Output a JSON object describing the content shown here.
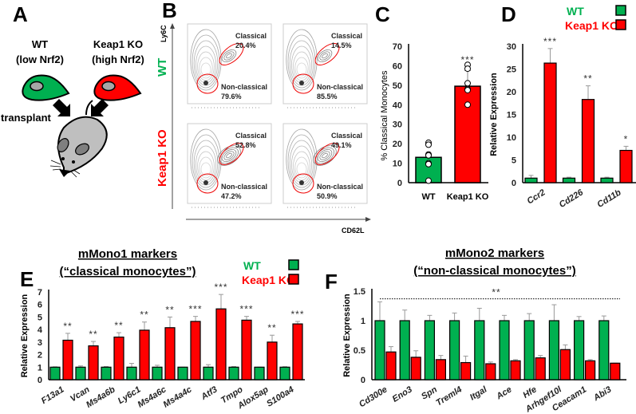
{
  "colors": {
    "wt": "#00b050",
    "ko": "#ff0000",
    "gray": "#bfbfbf"
  },
  "panel_a": {
    "letter": "A",
    "wt_label": "WT",
    "wt_sub": "(low Nrf2)",
    "ko_label": "Keap1 KO",
    "ko_sub": "(high Nrf2)",
    "transplant": "transplant"
  },
  "panel_b": {
    "letter": "B",
    "y_axis": "Ly6C",
    "x_axis": "CD62L",
    "row_labels": [
      "WT",
      "Keap1 KO"
    ],
    "plots": [
      {
        "classical_label": "Classical",
        "classical": "20.4%",
        "nonclassical_label": "Non-classical",
        "nonclassical": "79.6%"
      },
      {
        "classical_label": "Classical",
        "classical": "14.5%",
        "nonclassical_label": "Non-classical",
        "nonclassical": "85.5%"
      },
      {
        "classical_label": "Classical",
        "classical": "52.8%",
        "nonclassical_label": "Non-classical",
        "nonclassical": "47.2%"
      },
      {
        "classical_label": "Classical",
        "classical": "49.1%",
        "nonclassical_label": "Non-classical",
        "nonclassical": "50.9%"
      }
    ]
  },
  "legend": {
    "wt": "WT",
    "ko": "Keap1 KO"
  },
  "chart_data": [
    {
      "id": "C",
      "letter": "C",
      "type": "bar",
      "ylabel": "% Classical Monocytes",
      "ylim": [
        0,
        70
      ],
      "yticks": [
        0,
        10,
        20,
        30,
        40,
        50,
        60,
        70
      ],
      "categories": [
        "WT",
        "Keap1 KO"
      ],
      "values": [
        13,
        49.5
      ],
      "errors": [
        null,
        57.5
      ],
      "significance": [
        "",
        "***"
      ],
      "points": [
        [
          20.5,
          19.5,
          14.5,
          14,
          10,
          9.5,
          1
        ],
        [
          60.5,
          58.5,
          51,
          48,
          47.5,
          40
        ]
      ]
    },
    {
      "id": "D",
      "letter": "D",
      "type": "bar",
      "ylabel": "Relative Expression",
      "ylim": [
        0,
        30
      ],
      "yticks": [
        0,
        5,
        10,
        15,
        20,
        25,
        30
      ],
      "categories": [
        "Ccr2",
        "Cd226",
        "Cd11b"
      ],
      "series": [
        {
          "name": "WT",
          "values": [
            1,
            1,
            1
          ],
          "err_top": [
            1.6,
            1.2,
            1.2
          ]
        },
        {
          "name": "Keap1 KO",
          "values": [
            26.3,
            18.3,
            7.1
          ],
          "err_top": [
            29.5,
            21.3,
            8.0
          ]
        }
      ],
      "significance": [
        "***",
        "**",
        "*"
      ]
    },
    {
      "id": "E",
      "letter": "E",
      "type": "bar",
      "title": "mMono1 markers",
      "subtitle": "(“classical monocytes”)",
      "ylabel": "Relative Expression",
      "ylim": [
        0,
        7
      ],
      "yticks": [
        0,
        1,
        2,
        3,
        4,
        5,
        6,
        7
      ],
      "categories": [
        "F13a1",
        "Vcan",
        "Ms4a6b",
        "Ly6c1",
        "Ms4a6c",
        "Ms4a4c",
        "Atf3",
        "Tmpo",
        "Alox5ap",
        "S100a4"
      ],
      "series": [
        {
          "name": "WT",
          "values": [
            1,
            1,
            1,
            1,
            1,
            1,
            1,
            1,
            1,
            1
          ],
          "err_top": [
            1.03,
            1.1,
            1.05,
            1.3,
            1.15,
            1.0,
            1.2,
            1.05,
            1.0,
            1.04
          ]
        },
        {
          "name": "Keap1 KO",
          "values": [
            3.15,
            2.7,
            3.4,
            3.95,
            4.15,
            4.65,
            5.65,
            4.75,
            3.0,
            4.45
          ],
          "err_top": [
            3.7,
            3.05,
            3.75,
            4.6,
            5.0,
            5.05,
            6.8,
            5.05,
            3.55,
            4.65
          ]
        }
      ],
      "significance": [
        "**",
        "**",
        "**",
        "**",
        "**",
        "***",
        "***",
        "***",
        "**",
        "***"
      ]
    },
    {
      "id": "F",
      "letter": "F",
      "type": "bar",
      "title": "mMono2 markers",
      "subtitle": "(“non-classical monocytes”)",
      "ylabel": "Relative Expression",
      "ylim": [
        0,
        1.5
      ],
      "yticks": [
        "0",
        "0.5",
        "1",
        "1.5"
      ],
      "categories": [
        "Cd300e",
        "Eno3",
        "Spn",
        "Treml4",
        "Itgal",
        "Ace",
        "Hfe",
        "Arhgef10l",
        "Ceacam1",
        "Abi3"
      ],
      "series": [
        {
          "name": "WT",
          "values": [
            1,
            1,
            1,
            1,
            1,
            1,
            1,
            1,
            1,
            1
          ],
          "err_top": [
            1.32,
            1.18,
            1.09,
            1.13,
            1.21,
            1.09,
            1.12,
            1.27,
            1.07,
            1.08
          ]
        },
        {
          "name": "Keap1 KO",
          "values": [
            0.47,
            0.38,
            0.34,
            0.29,
            0.27,
            0.32,
            0.37,
            0.51,
            0.32,
            0.28
          ],
          "err_top": [
            0.56,
            0.49,
            0.41,
            0.4,
            0.3,
            0.34,
            0.41,
            0.59,
            0.34,
            0.28
          ]
        }
      ],
      "overall_significance": "**",
      "significance_line_at": 1.37
    }
  ]
}
